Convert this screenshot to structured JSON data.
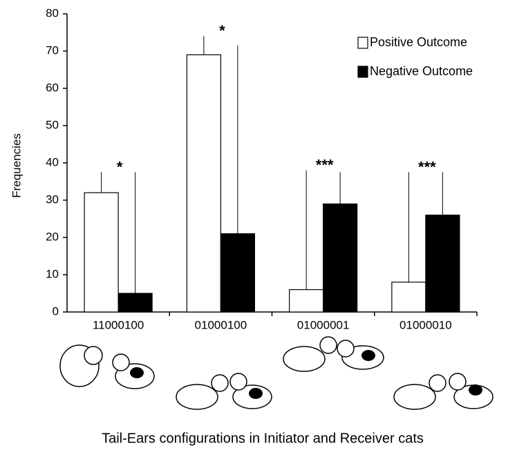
{
  "chart_data": {
    "type": "bar",
    "x_label": "Tail-Ears configurations in Initiator and Receiver cats",
    "y_label": "Frequencies",
    "categories": [
      "11000100",
      "01000100",
      "01000001",
      "01000010"
    ],
    "series": [
      {
        "name": "Positive Outcome",
        "color": "#ffffff",
        "values": [
          32,
          69,
          6,
          8
        ],
        "errors": [
          5.5,
          5,
          32,
          29.5
        ]
      },
      {
        "name": "Negative Outcome",
        "color": "#000000",
        "values": [
          5,
          21,
          29,
          26
        ],
        "errors": [
          32.5,
          50.5,
          8.5,
          11.5
        ]
      }
    ],
    "annotations": [
      "*",
      "*",
      "***",
      "***"
    ],
    "ylim": [
      0,
      80
    ],
    "yticks": [
      0,
      10,
      20,
      30,
      40,
      50,
      60,
      70,
      80
    ],
    "grid": false,
    "legend": "upper right"
  }
}
